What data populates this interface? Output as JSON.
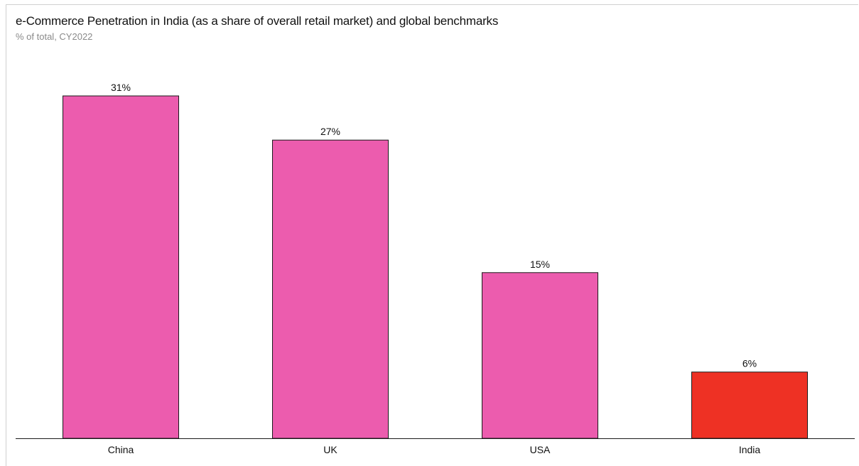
{
  "title": "e-Commerce Penetration in India (as a share of overall retail market) and global benchmarks",
  "subtitle": "% of total, CY2022",
  "chart_data": {
    "type": "bar",
    "title": "e-Commerce Penetration in India (as a share of overall retail market) and global benchmarks",
    "subtitle": "% of total, CY2022",
    "categories": [
      "China",
      "UK",
      "USA",
      "India"
    ],
    "values": [
      31,
      27,
      15,
      6
    ],
    "data_labels": [
      "31%",
      "27%",
      "15%",
      "6%"
    ],
    "unit": "%",
    "colors": [
      "#EC5CAE",
      "#EC5CAE",
      "#EC5CAE",
      "#EE3124"
    ],
    "ylim": [
      0,
      31
    ],
    "grid": false,
    "legend": "none"
  }
}
